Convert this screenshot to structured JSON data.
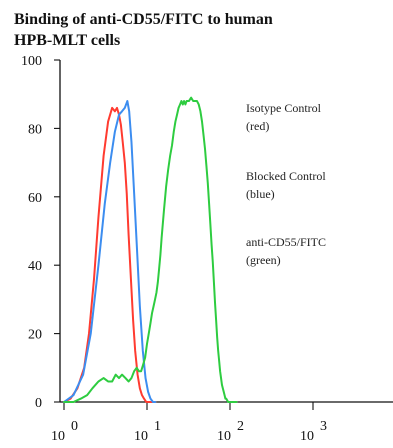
{
  "chart_data": {
    "type": "line",
    "title_lines": [
      "Binding of anti-CD55/FITC to human",
      "HPB-MLT cells"
    ],
    "xlabel": "",
    "ylabel": "",
    "x_scale": "log",
    "xlim": [
      1,
      1000
    ],
    "ylim": [
      0,
      100
    ],
    "x_ticks": [
      {
        "value": 1,
        "label": "10",
        "exp": "0"
      },
      {
        "value": 10,
        "label": "10",
        "exp": "1"
      },
      {
        "value": 100,
        "label": "10",
        "exp": "2"
      },
      {
        "value": 1000,
        "label": "10",
        "exp": "3"
      }
    ],
    "y_ticks": [
      0,
      20,
      40,
      60,
      80,
      100
    ],
    "grid": false,
    "legend_placement": "right",
    "legend_lines": [
      [
        "Isotype Control",
        "(red)"
      ],
      [
        "Blocked Control",
        "(blue)"
      ],
      [
        "anti-CD55/FITC",
        "(green)"
      ]
    ],
    "series": [
      {
        "color": "#ff3b30",
        "x": [
          1.0,
          1.2,
          1.45,
          1.75,
          2.0,
          2.3,
          2.6,
          3.0,
          3.4,
          3.8,
          4.1,
          4.35,
          4.6,
          4.85,
          5.1,
          5.4,
          5.7,
          6.0,
          6.4,
          6.8,
          7.2,
          7.7,
          8.2,
          8.7,
          9.2,
          9.8,
          10.4,
          11.0,
          11.8,
          12.6
        ],
        "y": [
          0,
          1,
          4,
          10,
          20,
          36,
          54,
          72,
          82,
          86,
          85,
          86,
          84,
          81,
          76,
          70,
          61,
          49,
          36,
          24,
          15,
          8,
          4,
          2,
          1,
          0,
          0,
          0,
          0,
          0
        ]
      },
      {
        "color": "#3c8df0",
        "x": [
          1.0,
          1.3,
          1.7,
          2.1,
          2.6,
          3.1,
          3.6,
          4.1,
          4.6,
          5.0,
          5.4,
          5.8,
          6.1,
          6.5,
          7.0,
          7.6,
          8.2,
          8.9,
          9.6,
          10.3,
          11.0,
          11.8,
          12.6
        ],
        "y": [
          0,
          2,
          8,
          20,
          40,
          58,
          70,
          79,
          84,
          85,
          86,
          88,
          85,
          76,
          61,
          44,
          28,
          15,
          7,
          3,
          1,
          0,
          0
        ]
      },
      {
        "color": "#2ecc40",
        "x": [
          1.0,
          1.3,
          1.6,
          1.9,
          2.2,
          2.6,
          3.0,
          3.4,
          3.8,
          4.2,
          4.6,
          5.0,
          5.5,
          6.0,
          6.5,
          7.0,
          7.5,
          8.0,
          8.5,
          9.0,
          9.5,
          10.0,
          10.5,
          11.0,
          11.5,
          12.0,
          12.5,
          13.0,
          13.5,
          14.0,
          14.5,
          15.0,
          16.0,
          17.0,
          18.0,
          19.0,
          20.0,
          21.0,
          22.0,
          23.0,
          24.0,
          25.0,
          26.0,
          27.0,
          28.0,
          29.0,
          30.0,
          32.0,
          34.0,
          36.0,
          38.0,
          40.0,
          42.0,
          44.0,
          46.0,
          48.0,
          50.0,
          52.0,
          54.0,
          56.0,
          58.0,
          60.0,
          62.0,
          64.0,
          66.0,
          68.0,
          70.0,
          72.0,
          74.0,
          76.0,
          78.0,
          80.0,
          82.0,
          84.0,
          86.0,
          88.0,
          90.0,
          95.0,
          100.0,
          110.0,
          120.0
        ],
        "y": [
          0,
          0,
          1,
          2,
          4,
          6,
          7,
          6,
          6,
          8,
          7,
          8,
          7,
          6,
          7,
          9,
          10,
          9,
          9,
          11,
          13,
          17,
          20,
          23,
          26,
          28,
          30,
          32,
          35,
          39,
          43,
          48,
          56,
          63,
          68,
          72,
          75,
          79,
          82,
          84,
          86,
          87,
          88,
          87,
          88,
          87,
          88,
          88,
          89,
          88,
          88,
          88,
          87,
          85,
          82,
          78,
          74,
          69,
          64,
          58,
          52,
          46,
          41,
          35,
          29,
          24,
          19,
          15,
          12,
          9,
          7,
          5,
          4,
          3,
          2,
          1,
          1,
          0,
          0,
          0,
          0
        ]
      }
    ]
  }
}
